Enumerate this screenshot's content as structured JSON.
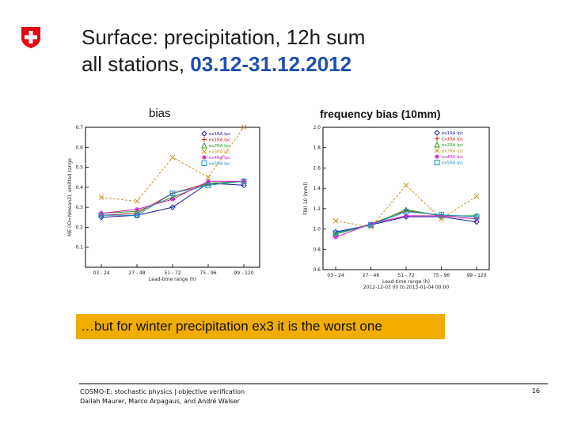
{
  "slide": {
    "title_line1": "Surface: precipitation, 12h sum",
    "title_line2_prefix": "all stations, ",
    "title_line2_accent": "03.12-31.12.2012",
    "callout": "…but for winter precipitation ex3 it is the worst one",
    "footer_line1": "COSMO-E: stochastic physics | objective verification",
    "footer_line2": "Dallah Maurer, Marco Arpagaus, and André Walser",
    "page_number": "16",
    "logo_color": "#e30613"
  },
  "chart_data": [
    {
      "type": "line",
      "title": "bias",
      "ylabel": "ME (ID=Nmean2), emitted range",
      "xlabel": "Lead-time range (h)",
      "categories": [
        "03 - 24",
        "27 - 48",
        "51 - 72",
        "75 - 96",
        "99 - 120"
      ],
      "ylim": [
        0.0,
        0.7
      ],
      "yticks": [
        "0.1",
        "0.2",
        "0.3",
        "0.4",
        "0.5",
        "0.6",
        "0.7"
      ],
      "legend_position": "top-right",
      "series": [
        {
          "name": "ex1RA Ipc",
          "color": "#1a1aa0",
          "marker": "diamond",
          "values": [
            0.25,
            0.26,
            0.3,
            0.42,
            0.41
          ]
        },
        {
          "name": "ex1RA Ipc",
          "color": "#d02020",
          "marker": "plus",
          "values": [
            0.26,
            0.27,
            0.37,
            0.42,
            0.43
          ]
        },
        {
          "name": "ex2RA Ipc",
          "color": "#20a020",
          "marker": "triangle",
          "values": [
            0.27,
            0.28,
            0.35,
            0.42,
            0.43
          ]
        },
        {
          "name": "ex3RA Ipc",
          "color": "#c8961e",
          "marker": "x",
          "values": [
            0.35,
            0.33,
            0.55,
            0.45,
            0.7
          ]
        },
        {
          "name": "ex4RA Ipc",
          "color": "#d020d0",
          "marker": "star",
          "values": [
            0.27,
            0.29,
            0.34,
            0.43,
            0.43
          ]
        },
        {
          "name": "ex5RA Ipc",
          "color": "#2090c8",
          "marker": "square",
          "values": [
            0.26,
            0.26,
            0.37,
            0.41,
            0.43
          ]
        }
      ]
    },
    {
      "type": "line",
      "title": "frequency bias (10mm)",
      "ylabel": "FBI( 10 (mm))",
      "xlabel": "Lead-time range (h)",
      "date_range": "2012-12-03 00 to 2013-01-04 00:00",
      "categories": [
        "03 - 24",
        "27 - 48",
        "51 - 72",
        "75 - 96",
        "99 - 120"
      ],
      "ylim": [
        0.6,
        2.0
      ],
      "yticks": [
        "0.6",
        "0.8",
        "1.0",
        "1.2",
        "1.4",
        "1.6",
        "1.8",
        "2.0"
      ],
      "legend_position": "top-right",
      "series": [
        {
          "name": "ex1RA Ipc",
          "color": "#1a1aa0",
          "marker": "diamond",
          "values": [
            0.97,
            1.04,
            1.12,
            1.12,
            1.07
          ]
        },
        {
          "name": "ex1RA Ipc",
          "color": "#d02020",
          "marker": "plus",
          "values": [
            0.95,
            1.05,
            1.18,
            1.13,
            1.1
          ]
        },
        {
          "name": "ex2RA Ipc",
          "color": "#20a020",
          "marker": "triangle",
          "values": [
            0.95,
            1.04,
            1.19,
            1.13,
            1.13
          ]
        },
        {
          "name": "ex3RA Ipc",
          "color": "#c8961e",
          "marker": "x",
          "values": [
            1.08,
            1.02,
            1.43,
            1.1,
            1.32
          ]
        },
        {
          "name": "ex4RA Ipc",
          "color": "#d020d0",
          "marker": "star",
          "values": [
            0.92,
            1.05,
            1.13,
            1.13,
            1.1
          ]
        },
        {
          "name": "ex5RA Ipc",
          "color": "#2090c8",
          "marker": "square",
          "values": [
            0.96,
            1.04,
            1.17,
            1.14,
            1.12
          ]
        }
      ]
    }
  ]
}
